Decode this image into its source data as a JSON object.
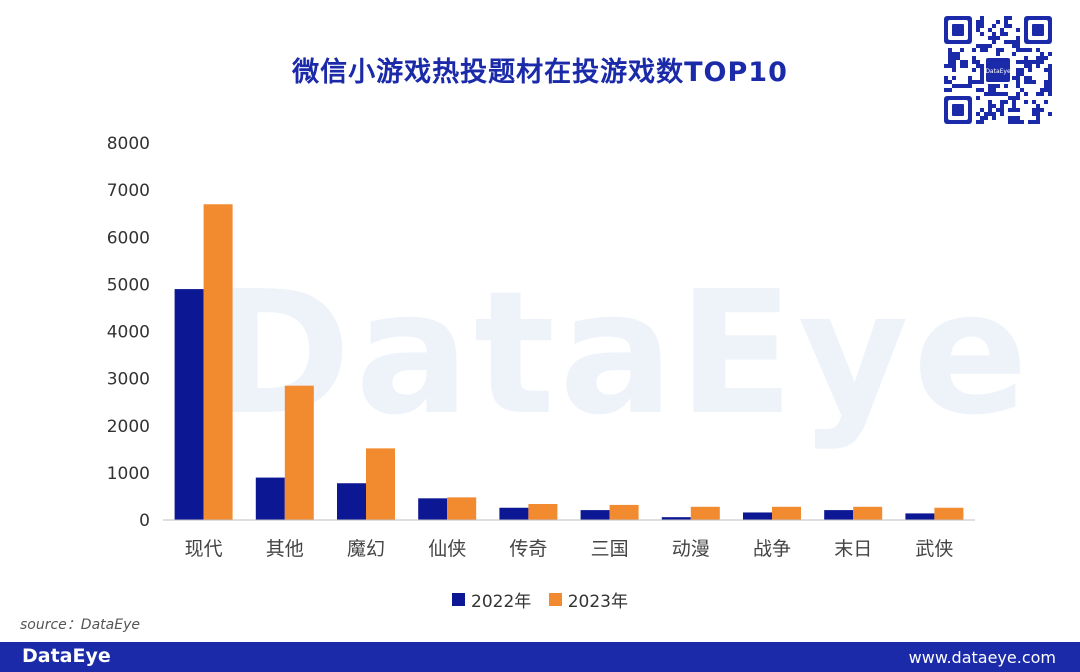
{
  "title": "微信小游戏热投题材在投游戏数TOP10",
  "source": "source：DataEye",
  "footer": {
    "brand": "DataEye",
    "url": "www.dataeye.com"
  },
  "watermark": "DataEye",
  "qr_label": "DataEye",
  "colors": {
    "series_2022": "#0c1794",
    "series_2023": "#f28a30",
    "title": "#1a2aa8",
    "footer": "#1a2aa8"
  },
  "chart_data": {
    "type": "bar",
    "title": "微信小游戏热投题材在投游戏数TOP10",
    "categories": [
      "现代",
      "其他",
      "魔幻",
      "仙侠",
      "传奇",
      "三国",
      "动漫",
      "战争",
      "末日",
      "武侠"
    ],
    "series": [
      {
        "name": "2022年",
        "values": [
          4900,
          900,
          780,
          460,
          260,
          210,
          60,
          160,
          210,
          140
        ]
      },
      {
        "name": "2023年",
        "values": [
          6700,
          2850,
          1520,
          480,
          340,
          320,
          280,
          280,
          280,
          260
        ]
      }
    ],
    "yticks": [
      0,
      1000,
      2000,
      3000,
      4000,
      5000,
      6000,
      7000,
      8000
    ],
    "ylim": [
      0,
      8000
    ],
    "grid": false,
    "legend": "bottom",
    "xlabel": "",
    "ylabel": ""
  }
}
